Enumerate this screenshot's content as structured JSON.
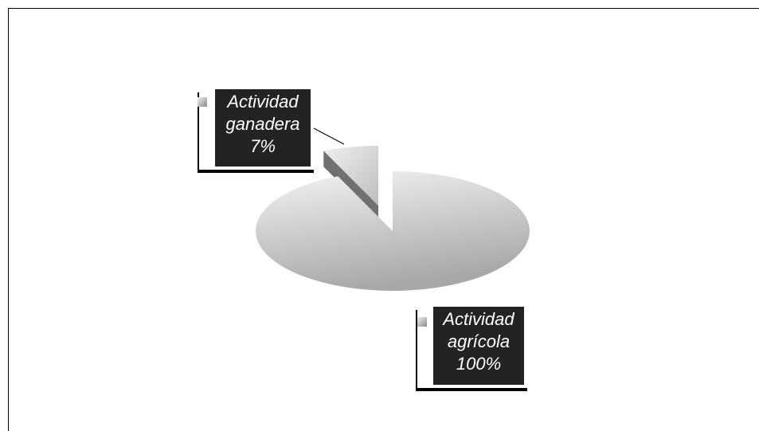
{
  "chart_data": {
    "type": "pie",
    "categories": [
      "Actividad ganadera",
      "Actividad agrícola"
    ],
    "values": [
      7,
      100
    ],
    "value_labels": [
      "7%",
      "100%"
    ],
    "legend": true
  }
}
